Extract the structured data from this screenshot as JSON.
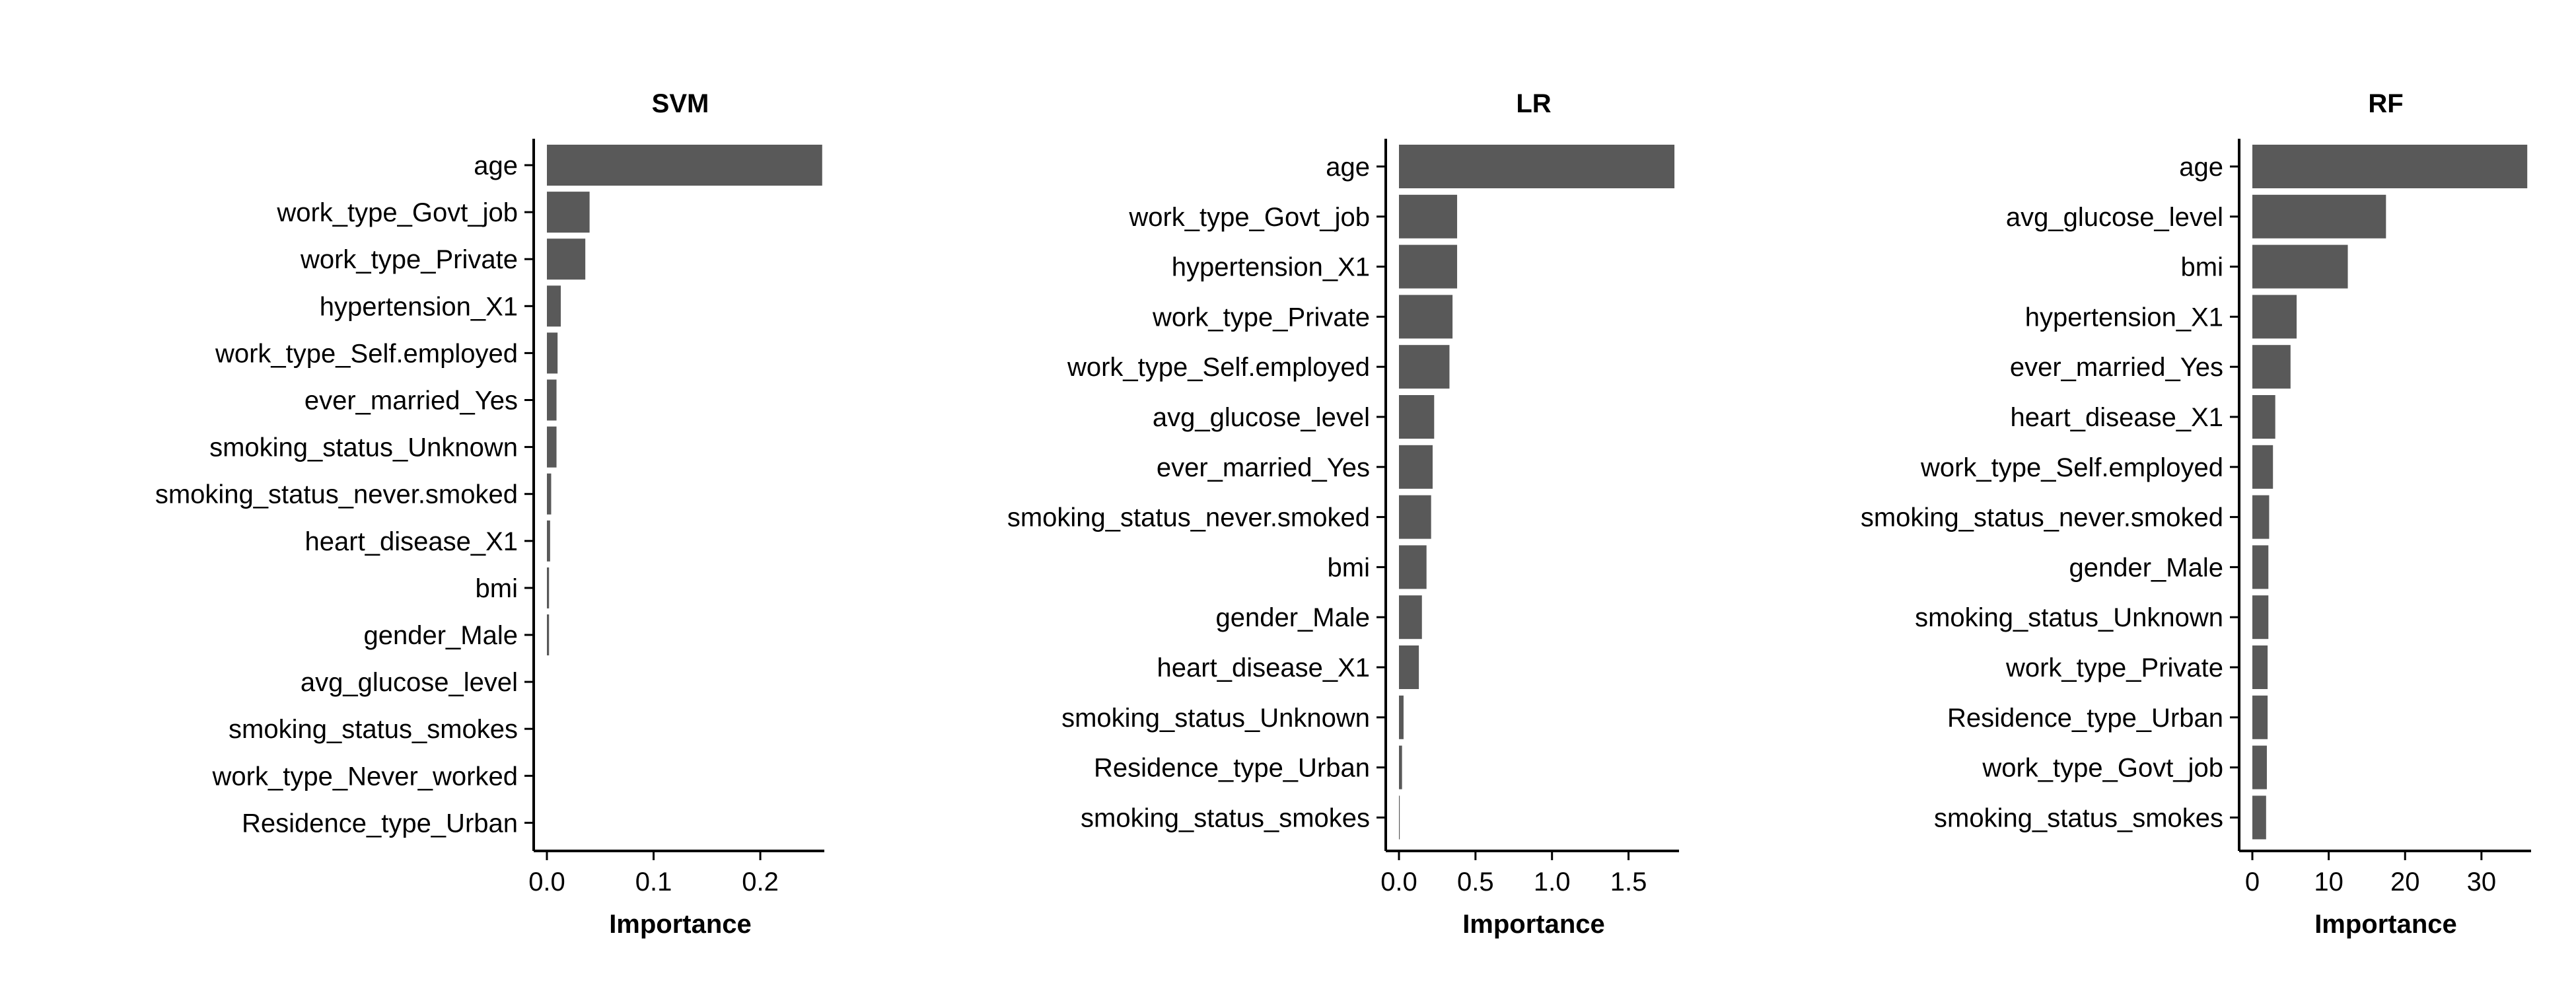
{
  "figure": {
    "bar_color": "#595959",
    "background": "#ffffff"
  },
  "chart_data": [
    {
      "type": "bar",
      "orientation": "horizontal",
      "title": "SVM",
      "xlabel": "Importance",
      "ylabel": "",
      "xlim": [
        0,
        0.26
      ],
      "xticks": [
        0.0,
        0.1,
        0.2
      ],
      "xtick_labels": [
        "0.0",
        "0.1",
        "0.2"
      ],
      "grid": false,
      "categories": [
        "age",
        "work_type_Govt_job",
        "work_type_Private",
        "hypertension_X1",
        "work_type_Self.employed",
        "ever_married_Yes",
        "smoking_status_Unknown",
        "smoking_status_never.smoked",
        "heart_disease_X1",
        "bmi",
        "gender_Male",
        "avg_glucose_level",
        "smoking_status_smokes",
        "work_type_Never_worked",
        "Residence_type_Urban"
      ],
      "values": [
        0.258,
        0.04,
        0.036,
        0.013,
        0.01,
        0.009,
        0.009,
        0.004,
        0.003,
        0.002,
        0.002,
        0.0,
        0.0,
        0.0,
        0.0
      ]
    },
    {
      "type": "bar",
      "orientation": "horizontal",
      "title": "LR",
      "xlabel": "Importance",
      "ylabel": "",
      "xlim": [
        0,
        1.83
      ],
      "xticks": [
        0.0,
        0.5,
        1.0,
        1.5
      ],
      "xtick_labels": [
        "0.0",
        "0.5",
        "1.0",
        "1.5"
      ],
      "grid": false,
      "categories": [
        "age",
        "work_type_Govt_job",
        "hypertension_X1",
        "work_type_Private",
        "work_type_Self.employed",
        "avg_glucose_level",
        "ever_married_Yes",
        "smoking_status_never.smoked",
        "bmi",
        "gender_Male",
        "heart_disease_X1",
        "smoking_status_Unknown",
        "Residence_type_Urban",
        "smoking_status_smokes"
      ],
      "values": [
        1.8,
        0.38,
        0.38,
        0.35,
        0.33,
        0.23,
        0.22,
        0.21,
        0.18,
        0.15,
        0.13,
        0.03,
        0.02,
        0.005
      ]
    },
    {
      "type": "bar",
      "orientation": "horizontal",
      "title": "RF",
      "xlabel": "Importance",
      "ylabel": "",
      "xlim": [
        0,
        36.5
      ],
      "xticks": [
        0,
        10,
        20,
        30
      ],
      "xtick_labels": [
        "0",
        "10",
        "20",
        "30"
      ],
      "grid": false,
      "categories": [
        "age",
        "avg_glucose_level",
        "bmi",
        "hypertension_X1",
        "ever_married_Yes",
        "heart_disease_X1",
        "work_type_Self.employed",
        "smoking_status_never.smoked",
        "gender_Male",
        "smoking_status_Unknown",
        "work_type_Private",
        "Residence_type_Urban",
        "work_type_Govt_job",
        "smoking_status_smokes"
      ],
      "values": [
        36.0,
        17.5,
        12.5,
        5.8,
        5.0,
        3.0,
        2.7,
        2.2,
        2.1,
        2.1,
        2.0,
        2.0,
        1.9,
        1.8
      ]
    }
  ]
}
